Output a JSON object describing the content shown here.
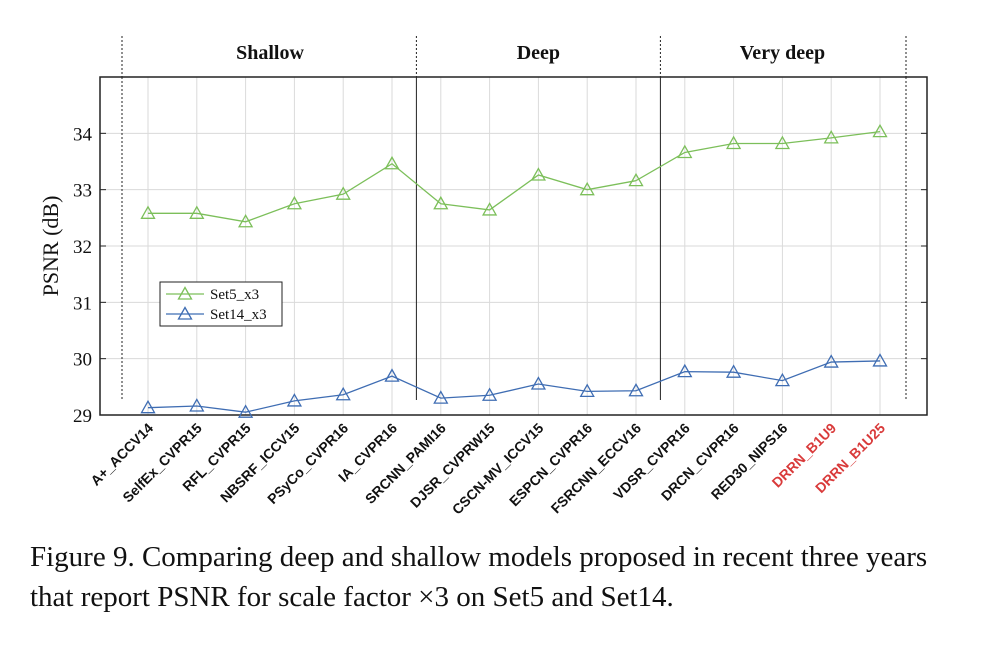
{
  "chart_data": {
    "type": "line",
    "categories": [
      "A+_ACCV14",
      "SelfEx_CVPR15",
      "RFL_CVPR15",
      "NBSRF_ICCV15",
      "PSyCo_CVPR16",
      "IA_CVPR16",
      "SRCNN_PAMI16",
      "DJSR_CVPRW15",
      "CSCN-MV_ICCV15",
      "ESPCN_CVPR16",
      "FSRCNN_ECCV16",
      "VDSR_CVPR16",
      "DRCN_CVPR16",
      "RED30_NIPS16",
      "DRRN_B1U9",
      "DRRN_B1U25"
    ],
    "highlighted_categories": [
      "DRRN_B1U9",
      "DRRN_B1U25"
    ],
    "series": [
      {
        "name": "Set5_x3",
        "color": "#7cbf5a",
        "values": [
          32.58,
          32.58,
          32.43,
          32.75,
          32.92,
          33.46,
          32.75,
          32.64,
          33.26,
          33.0,
          33.16,
          33.66,
          33.82,
          33.82,
          33.92,
          34.03
        ]
      },
      {
        "name": "Set14_x3",
        "color": "#3f6db3",
        "values": [
          29.13,
          29.16,
          29.05,
          29.25,
          29.36,
          29.69,
          29.3,
          29.35,
          29.55,
          29.42,
          29.43,
          29.77,
          29.76,
          29.61,
          29.94,
          29.96
        ]
      }
    ],
    "groups": [
      {
        "label": "Shallow",
        "start": 0,
        "end": 5
      },
      {
        "label": "Deep",
        "start": 6,
        "end": 10
      },
      {
        "label": "Very deep",
        "start": 11,
        "end": 15
      }
    ],
    "ylabel": "PSNR (dB)",
    "ylim": [
      29,
      35
    ],
    "yticks": [
      29,
      30,
      31,
      32,
      33,
      34
    ],
    "grid": true,
    "legend_position": "center-left",
    "highlight_color": "#d93a3a"
  },
  "caption": "Figure 9. Comparing deep and shallow models proposed in recent three years that report PSNR for scale factor ×3 on Set5 and Set14."
}
